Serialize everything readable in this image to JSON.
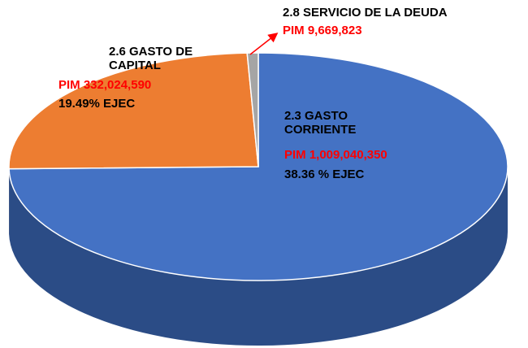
{
  "chart_data": {
    "type": "pie",
    "categories": [
      "2.3 GASTO CORRIENTE",
      "2.6 GASTO DE CAPITAL",
      "2.8 SERVICIO DE LA DEUDA"
    ],
    "values": [
      1009040350,
      332024590,
      9669823
    ],
    "value_labels": [
      "PIM 1,009,040,350",
      "PIM 332,024,590",
      "PIM 9,669,823"
    ],
    "colors": [
      "#4472c4",
      "#ed7d31",
      "#a5a5a5"
    ],
    "side_colors": [
      "#2b4c86",
      "#b85c1f",
      "#7f7f7f"
    ],
    "annotations": [
      "38.36 % EJEC",
      "19.49% EJEC"
    ]
  }
}
